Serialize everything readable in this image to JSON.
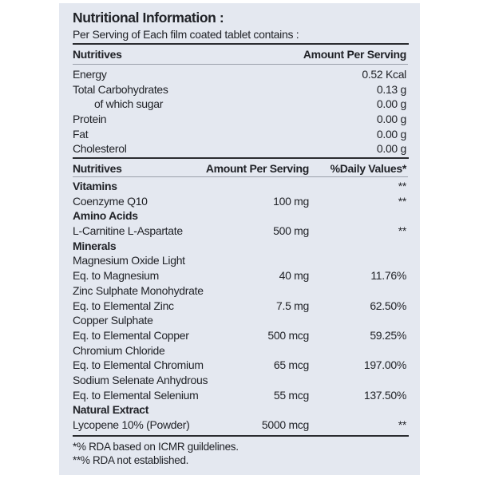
{
  "title": "Nutritional Information :",
  "subtitle": "Per Serving of Each film coated tablet contains :",
  "table1": {
    "headers": [
      "Nutritives",
      "Amount Per Serving"
    ],
    "rows": [
      {
        "name": "Energy",
        "amount": "0.52 Kcal"
      },
      {
        "name": "Total Carbohydrates",
        "amount": "0.13 g"
      },
      {
        "name": "of which sugar",
        "amount": "0.00 g",
        "indent": true
      },
      {
        "name": "Protein",
        "amount": "0.00 g"
      },
      {
        "name": "Fat",
        "amount": "0.00 g"
      },
      {
        "name": "Cholesterol",
        "amount": "0.00 g"
      }
    ]
  },
  "table2": {
    "headers": [
      "Nutritives",
      "Amount Per Serving",
      "%Daily Values*"
    ],
    "rows": [
      {
        "name": "Vitamins",
        "amount": "",
        "dv": "**",
        "bold": true
      },
      {
        "name": "Coenzyme Q10",
        "amount": "100 mg",
        "dv": "**"
      },
      {
        "name": "Amino Acids",
        "amount": "",
        "dv": "",
        "bold": true
      },
      {
        "name": "L-Carnitine L-Aspartate",
        "amount": "500 mg",
        "dv": "**"
      },
      {
        "name": "Minerals",
        "amount": "",
        "dv": "",
        "bold": true
      },
      {
        "name": "Magnesium Oxide Light",
        "amount": "",
        "dv": ""
      },
      {
        "name": "Eq. to Magnesium",
        "amount": "40 mg",
        "dv": "11.76%"
      },
      {
        "name": "Zinc Sulphate Monohydrate",
        "amount": "",
        "dv": ""
      },
      {
        "name": "Eq. to Elemental Zinc",
        "amount": "7.5 mg",
        "dv": "62.50%"
      },
      {
        "name": "Copper Sulphate",
        "amount": "",
        "dv": ""
      },
      {
        "name": "Eq. to Elemental Copper",
        "amount": "500 mcg",
        "dv": "59.25%"
      },
      {
        "name": "Chromium Chloride",
        "amount": "",
        "dv": ""
      },
      {
        "name": "Eq. to Elemental Chromium",
        "amount": "65 mcg",
        "dv": "197.00%"
      },
      {
        "name": "Sodium Selenate Anhydrous",
        "amount": "",
        "dv": ""
      },
      {
        "name": "Eq. to Elemental Selenium",
        "amount": "55 mcg",
        "dv": "137.50%"
      },
      {
        "name": "Natural Extract",
        "amount": "",
        "dv": "",
        "bold": true
      },
      {
        "name": "Lycopene 10% (Powder)",
        "amount": "5000 mcg",
        "dv": "**"
      }
    ]
  },
  "footnotes": [
    "*% RDA based  on ICMR  guildelines.",
    "**% RDA not established."
  ],
  "colors": {
    "background": "#e4e8f0",
    "text": "#1f2126"
  }
}
